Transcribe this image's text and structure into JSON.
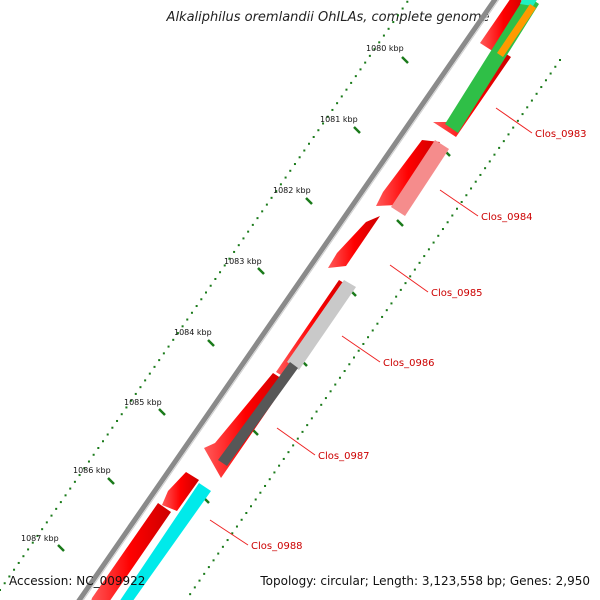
{
  "title": "Alkaliphilus oremlandii OhILAs, complete genome",
  "accession": "Accession: NC_009922",
  "genome_info": "Topology: circular; Length: 3,123,558 bp; Genes: 2,950",
  "ruler": [
    {
      "label": "1080 kbp"
    },
    {
      "label": "1081 kbp"
    },
    {
      "label": "1082 kbp"
    },
    {
      "label": "1083 kbp"
    },
    {
      "label": "1084 kbp"
    },
    {
      "label": "1085 kbp"
    },
    {
      "label": "1086 kbp"
    },
    {
      "label": "1087 kbp"
    }
  ],
  "genes": [
    {
      "label": "Clos_0983"
    },
    {
      "label": "Clos_0984"
    },
    {
      "label": "Clos_0985"
    },
    {
      "label": "Clos_0986"
    },
    {
      "label": "Clos_0987"
    },
    {
      "label": "Clos_0988"
    }
  ],
  "colors": {
    "backbone": "#888888",
    "cds_forward": "#ff0000",
    "cds_reverse": "#ff8c8c",
    "gc_skew_green": "#33cc33",
    "orange": "#ff9900",
    "grey_light": "#c8c8c8",
    "grey_dark": "#555555",
    "cyan": "#00eeee",
    "label_red": "#cc0000",
    "tick_green": "#1a7a1a"
  }
}
